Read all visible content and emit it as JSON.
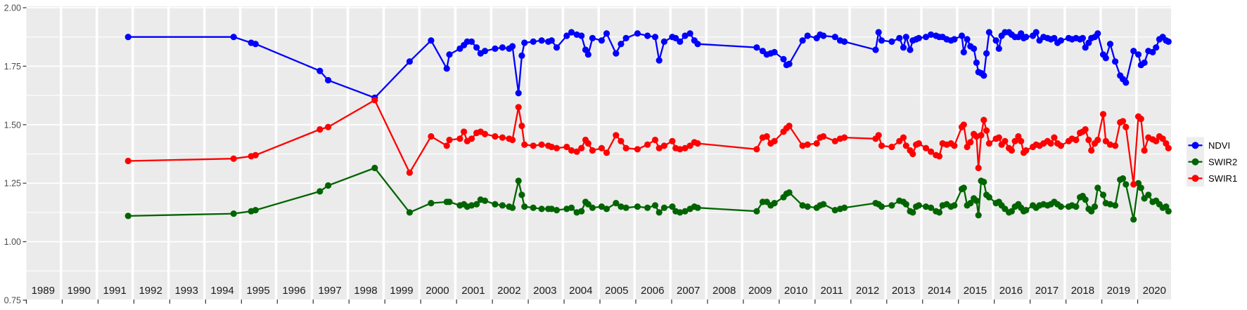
{
  "figure": {
    "background": "#FFFFFF",
    "panel_background": "#EBEBEB",
    "gridline_color": "#FFFFFF",
    "axis_text_color": "#4D4D4D",
    "strip_text_color": "#1A1A1A",
    "tick_color": "#333333"
  },
  "legend": {
    "position": "right",
    "key_background": "#EDEDED",
    "entries": [
      {
        "label": "NDVI",
        "color": "#0000FF"
      },
      {
        "label": "SWIR2",
        "color": "#006400"
      },
      {
        "label": "SWIR1",
        "color": "#FF0000"
      }
    ]
  },
  "chart_data": {
    "type": "line",
    "title": "",
    "xlabel": "",
    "ylabel": "",
    "grid": "major+minor",
    "legend_position": "right",
    "ylim": [
      0.75,
      2.0
    ],
    "y_ticks": [
      {
        "label": "2.00",
        "value": 2.0
      },
      {
        "label": "1.75",
        "value": 1.75
      },
      {
        "label": "1.50",
        "value": 1.5
      },
      {
        "label": "1.25",
        "value": 1.25
      },
      {
        "label": "1.00",
        "value": 1.0
      },
      {
        "label": "0.75",
        "value": 0.75
      }
    ],
    "x_panels": [
      1989,
      1990,
      1991,
      1992,
      1993,
      1994,
      1995,
      1996,
      1997,
      1998,
      1999,
      2000,
      2001,
      2002,
      2003,
      2004,
      2005,
      2006,
      2007,
      2008,
      2009,
      2010,
      2011,
      2012,
      2013,
      2014,
      2015,
      2016,
      2017,
      2018,
      2019,
      2020
    ],
    "x": [
      1991.9,
      1994.84,
      1995.29,
      1995.42,
      1997.2,
      1997.45,
      1998.77,
      1999.74,
      2000.31,
      2000.78,
      2000.86,
      2001.1,
      2001.22,
      2001.32,
      2001.45,
      2001.6,
      2001.72,
      2001.85,
      2002.08,
      2002.3,
      2002.5,
      2002.6,
      2002.78,
      2002.88,
      2002.96,
      2003.15,
      2003.4,
      2003.6,
      2003.7,
      2003.85,
      2004.08,
      2004.22,
      2004.38,
      2004.52,
      2004.64,
      2004.72,
      2004.85,
      2005.05,
      2005.2,
      2005.48,
      2005.63,
      2005.78,
      2006.05,
      2006.35,
      2006.58,
      2006.7,
      2006.85,
      2007.02,
      2007.12,
      2007.25,
      2007.4,
      2007.55,
      2007.68,
      2007.78,
      2009.4,
      2009.58,
      2009.7,
      2009.82,
      2009.93,
      2010.13,
      2010.22,
      2010.3,
      2010.7,
      2010.85,
      2011.05,
      2011.15,
      2011.25,
      2011.6,
      2011.75,
      2011.88,
      2012.74,
      2012.83,
      2012.92,
      2013.15,
      2013.38,
      2013.5,
      2013.58,
      2013.7,
      2013.78,
      2013.88,
      2013.96,
      2014.1,
      2014.25,
      2014.4,
      2014.5,
      2014.6,
      2014.72,
      2014.85,
      2014.95,
      2015.1,
      2015.16,
      2015.26,
      2015.36,
      2015.46,
      2015.54,
      2015.6,
      2015.68,
      2015.76,
      2015.84,
      2015.92,
      2016.05,
      2016.14,
      2016.22,
      2016.32,
      2016.44,
      2016.52,
      2016.62,
      2016.72,
      2016.8,
      2016.88,
      2016.95,
      2017.08,
      2017.18,
      2017.28,
      2017.4,
      2017.52,
      2017.62,
      2017.72,
      2017.82,
      2017.92,
      2018.08,
      2018.18,
      2018.3,
      2018.42,
      2018.5,
      2018.58,
      2018.68,
      2018.76,
      2018.86,
      2018.95,
      2019.04,
      2019.12,
      2019.25,
      2019.4,
      2019.55,
      2019.63,
      2019.72,
      2019.95,
      2020.02,
      2020.1,
      2020.2,
      2020.32,
      2020.45,
      2020.55,
      2020.65,
      2020.75,
      2020.85,
      2020.92
    ],
    "series": [
      {
        "name": "NDVI",
        "color": "#0000FF",
        "values": [
          1.875,
          1.875,
          1.85,
          1.845,
          1.73,
          1.69,
          1.615,
          1.77,
          1.86,
          1.74,
          1.8,
          1.825,
          1.84,
          1.855,
          1.855,
          1.83,
          1.805,
          1.815,
          1.825,
          1.83,
          1.825,
          1.835,
          1.635,
          1.795,
          1.85,
          1.855,
          1.86,
          1.855,
          1.86,
          1.83,
          1.88,
          1.895,
          1.885,
          1.88,
          1.82,
          1.8,
          1.87,
          1.86,
          1.89,
          1.805,
          1.845,
          1.87,
          1.89,
          1.88,
          1.875,
          1.775,
          1.855,
          1.875,
          1.87,
          1.855,
          1.88,
          1.89,
          1.86,
          1.845,
          1.83,
          1.815,
          1.8,
          1.805,
          1.81,
          1.78,
          1.755,
          1.76,
          1.86,
          1.88,
          1.87,
          1.885,
          1.88,
          1.875,
          1.86,
          1.855,
          1.82,
          1.895,
          1.86,
          1.855,
          1.87,
          1.83,
          1.875,
          1.82,
          1.86,
          1.865,
          1.87,
          1.875,
          1.885,
          1.88,
          1.875,
          1.875,
          1.865,
          1.86,
          1.865,
          1.88,
          1.81,
          1.865,
          1.835,
          1.825,
          1.765,
          1.725,
          1.72,
          1.71,
          1.805,
          1.895,
          1.86,
          1.825,
          1.88,
          1.895,
          1.895,
          1.885,
          1.875,
          1.875,
          1.89,
          1.87,
          1.875,
          1.88,
          1.895,
          1.86,
          1.875,
          1.87,
          1.865,
          1.87,
          1.85,
          1.86,
          1.87,
          1.865,
          1.87,
          1.865,
          1.87,
          1.83,
          1.85,
          1.87,
          1.875,
          1.89,
          1.8,
          1.785,
          1.845,
          1.77,
          1.71,
          1.695,
          1.68,
          1.815,
          1.8,
          1.755,
          1.765,
          1.815,
          1.81,
          1.83,
          1.865,
          1.875,
          1.86,
          1.855
        ]
      },
      {
        "name": "SWIR2",
        "color": "#006400",
        "values": [
          1.11,
          1.12,
          1.13,
          1.135,
          1.215,
          1.24,
          1.315,
          1.125,
          1.165,
          1.17,
          1.17,
          1.155,
          1.16,
          1.15,
          1.155,
          1.16,
          1.18,
          1.175,
          1.16,
          1.155,
          1.15,
          1.145,
          1.26,
          1.2,
          1.15,
          1.145,
          1.14,
          1.14,
          1.14,
          1.135,
          1.14,
          1.145,
          1.125,
          1.13,
          1.17,
          1.16,
          1.145,
          1.15,
          1.14,
          1.165,
          1.15,
          1.145,
          1.15,
          1.145,
          1.155,
          1.125,
          1.145,
          1.15,
          1.13,
          1.125,
          1.13,
          1.14,
          1.15,
          1.145,
          1.13,
          1.17,
          1.17,
          1.155,
          1.165,
          1.19,
          1.205,
          1.21,
          1.155,
          1.15,
          1.145,
          1.155,
          1.16,
          1.135,
          1.14,
          1.145,
          1.165,
          1.16,
          1.15,
          1.155,
          1.175,
          1.17,
          1.16,
          1.13,
          1.125,
          1.15,
          1.155,
          1.15,
          1.145,
          1.13,
          1.125,
          1.155,
          1.16,
          1.15,
          1.155,
          1.225,
          1.23,
          1.155,
          1.165,
          1.185,
          1.175,
          1.113,
          1.26,
          1.255,
          1.2,
          1.19,
          1.165,
          1.17,
          1.155,
          1.14,
          1.125,
          1.13,
          1.15,
          1.16,
          1.145,
          1.13,
          1.135,
          1.155,
          1.145,
          1.155,
          1.16,
          1.155,
          1.16,
          1.17,
          1.16,
          1.15,
          1.15,
          1.155,
          1.15,
          1.19,
          1.195,
          1.18,
          1.14,
          1.13,
          1.15,
          1.23,
          1.2,
          1.165,
          1.16,
          1.155,
          1.265,
          1.27,
          1.245,
          1.095,
          1.25,
          1.23,
          1.185,
          1.2,
          1.17,
          1.175,
          1.16,
          1.145,
          1.15,
          1.13
        ]
      },
      {
        "name": "SWIR1",
        "color": "#FF0000",
        "values": [
          1.345,
          1.355,
          1.365,
          1.37,
          1.48,
          1.49,
          1.605,
          1.295,
          1.45,
          1.41,
          1.435,
          1.44,
          1.47,
          1.43,
          1.44,
          1.465,
          1.47,
          1.46,
          1.45,
          1.445,
          1.44,
          1.435,
          1.575,
          1.495,
          1.415,
          1.41,
          1.415,
          1.41,
          1.405,
          1.4,
          1.405,
          1.39,
          1.385,
          1.4,
          1.435,
          1.42,
          1.39,
          1.4,
          1.38,
          1.455,
          1.43,
          1.4,
          1.395,
          1.415,
          1.435,
          1.4,
          1.41,
          1.43,
          1.4,
          1.395,
          1.4,
          1.41,
          1.425,
          1.42,
          1.395,
          1.445,
          1.45,
          1.42,
          1.43,
          1.47,
          1.485,
          1.495,
          1.41,
          1.415,
          1.42,
          1.445,
          1.45,
          1.43,
          1.44,
          1.445,
          1.44,
          1.455,
          1.41,
          1.405,
          1.43,
          1.445,
          1.41,
          1.39,
          1.375,
          1.415,
          1.42,
          1.4,
          1.385,
          1.37,
          1.365,
          1.42,
          1.415,
          1.42,
          1.41,
          1.49,
          1.5,
          1.405,
          1.425,
          1.46,
          1.45,
          1.315,
          1.455,
          1.52,
          1.475,
          1.42,
          1.44,
          1.445,
          1.415,
          1.43,
          1.4,
          1.39,
          1.43,
          1.45,
          1.43,
          1.38,
          1.39,
          1.405,
          1.415,
          1.41,
          1.42,
          1.43,
          1.42,
          1.445,
          1.42,
          1.41,
          1.43,
          1.44,
          1.435,
          1.465,
          1.47,
          1.48,
          1.435,
          1.39,
          1.42,
          1.435,
          1.545,
          1.43,
          1.415,
          1.41,
          1.51,
          1.515,
          1.49,
          1.245,
          1.535,
          1.525,
          1.39,
          1.445,
          1.437,
          1.43,
          1.45,
          1.44,
          1.42,
          1.4
        ]
      }
    ]
  }
}
